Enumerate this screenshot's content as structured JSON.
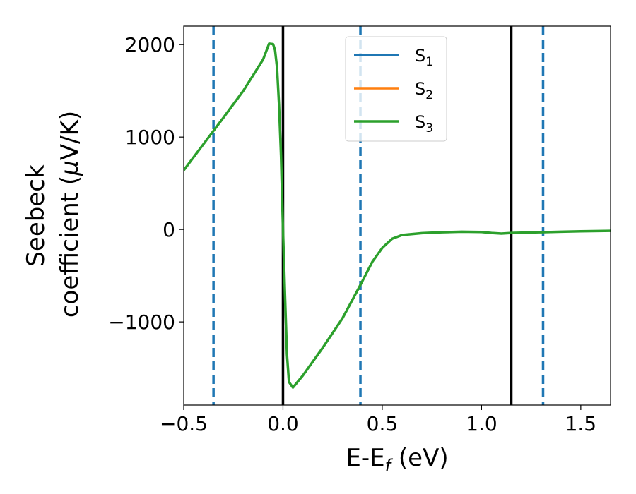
{
  "chart_data": {
    "type": "line",
    "xlabel": "E-E",
    "xlabel_sub": "f",
    "xlabel_unit": " (eV)",
    "ylabel_line1": "Seebeck",
    "ylabel_line2_pre": "coefficient  (",
    "ylabel_mu": "μ",
    "ylabel_line2_post": "V/K)",
    "xlim": [
      -0.5,
      1.65
    ],
    "ylim": [
      -1900,
      2200
    ],
    "xticks": [
      -0.5,
      0.0,
      0.5,
      1.0,
      1.5
    ],
    "xtick_labels": [
      "−0.5",
      "0.0",
      "0.5",
      "1.0",
      "1.5"
    ],
    "yticks": [
      -1000,
      0,
      1000,
      2000
    ],
    "ytick_labels": [
      "−1000",
      "0",
      "1000",
      "2000"
    ],
    "legend": {
      "placement": "upper-center",
      "entries": [
        {
          "base": "S",
          "sub": "1",
          "color": "#1f77b4"
        },
        {
          "base": "S",
          "sub": "2",
          "color": "#ff7f0e"
        },
        {
          "base": "S",
          "sub": "3",
          "color": "#2ca02c"
        }
      ]
    },
    "vlines": [
      {
        "x": -0.35,
        "style": "dashed",
        "color": "#1f77b4"
      },
      {
        "x": 0.0,
        "style": "solid",
        "color": "#000000"
      },
      {
        "x": 0.39,
        "style": "dashed",
        "color": "#1f77b4"
      },
      {
        "x": 1.15,
        "style": "solid",
        "color": "#000000"
      },
      {
        "x": 1.31,
        "style": "dashed",
        "color": "#1f77b4"
      }
    ],
    "series": [
      {
        "name": "S3",
        "color": "#2ca02c",
        "points": [
          [
            -0.5,
            640
          ],
          [
            -0.4,
            925
          ],
          [
            -0.3,
            1210
          ],
          [
            -0.2,
            1500
          ],
          [
            -0.1,
            1840
          ],
          [
            -0.07,
            2010
          ],
          [
            -0.05,
            2005
          ],
          [
            -0.04,
            1940
          ],
          [
            -0.03,
            1750
          ],
          [
            -0.02,
            1350
          ],
          [
            -0.01,
            800
          ],
          [
            0.0,
            0
          ],
          [
            0.01,
            -700
          ],
          [
            0.02,
            -1350
          ],
          [
            0.03,
            -1650
          ],
          [
            0.05,
            -1710
          ],
          [
            0.1,
            -1580
          ],
          [
            0.2,
            -1280
          ],
          [
            0.3,
            -960
          ],
          [
            0.39,
            -600
          ],
          [
            0.45,
            -350
          ],
          [
            0.5,
            -200
          ],
          [
            0.55,
            -100
          ],
          [
            0.6,
            -60
          ],
          [
            0.7,
            -40
          ],
          [
            0.8,
            -30
          ],
          [
            0.9,
            -25
          ],
          [
            1.0,
            -28
          ],
          [
            1.05,
            -38
          ],
          [
            1.1,
            -45
          ],
          [
            1.15,
            -38
          ],
          [
            1.2,
            -35
          ],
          [
            1.3,
            -30
          ],
          [
            1.4,
            -25
          ],
          [
            1.5,
            -20
          ],
          [
            1.65,
            -15
          ]
        ]
      }
    ]
  }
}
